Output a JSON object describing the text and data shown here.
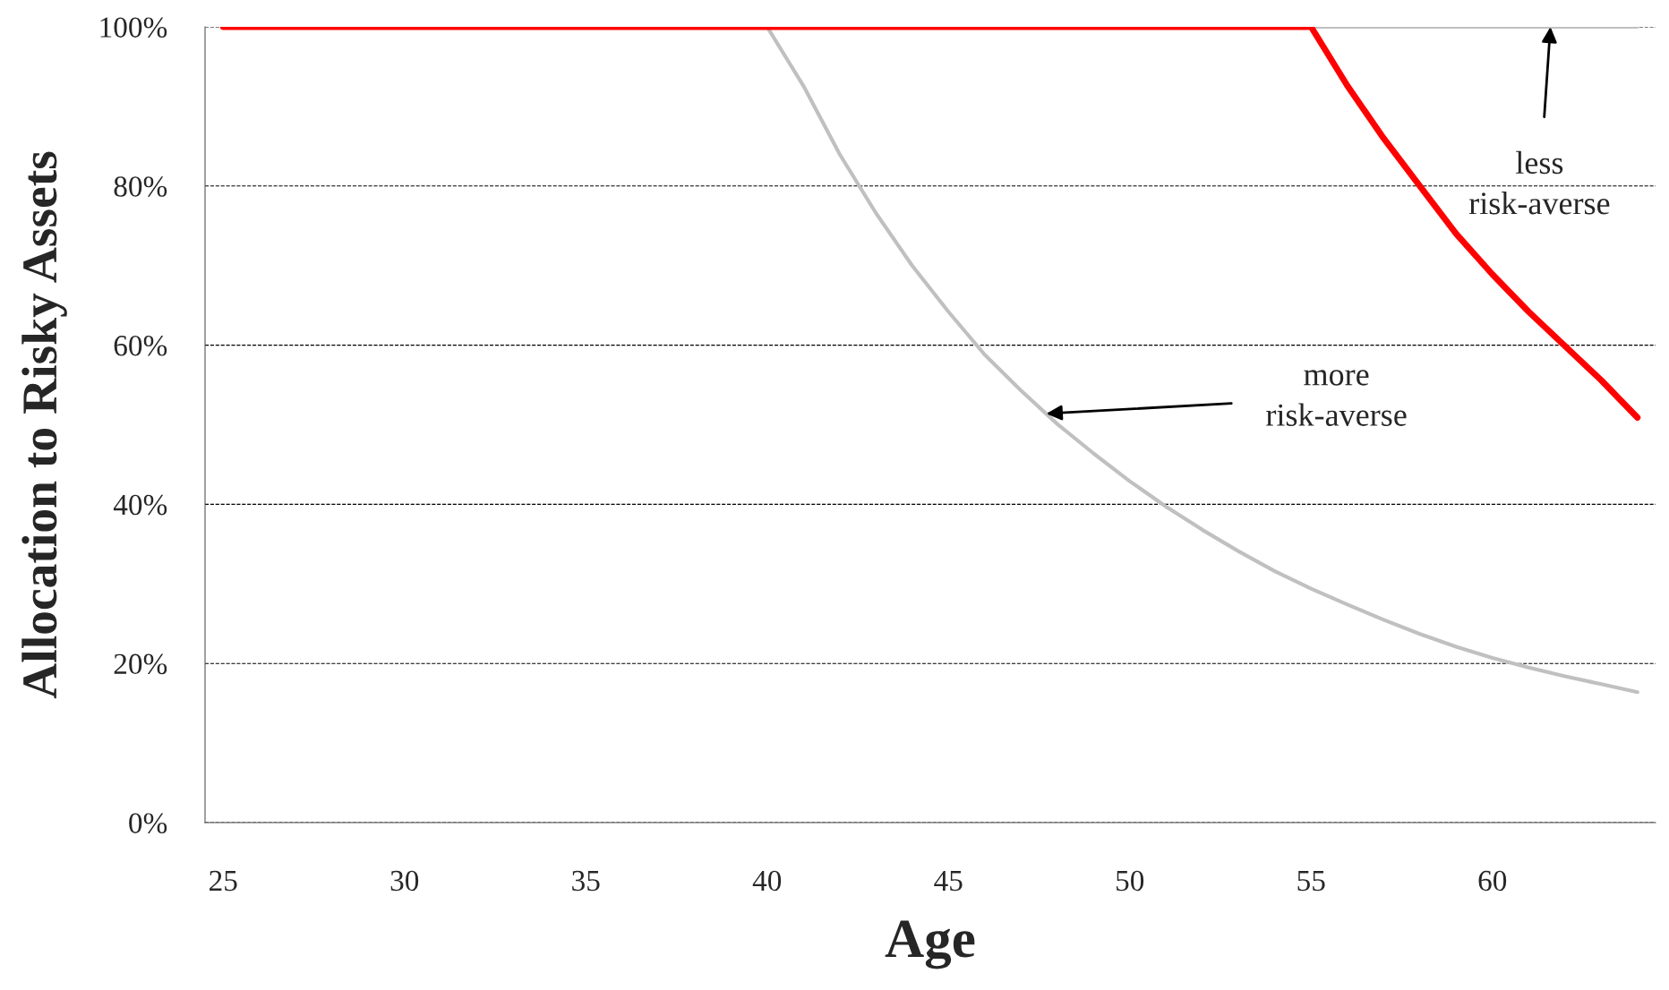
{
  "chart_data": {
    "type": "line",
    "xlabel": "Age",
    "ylabel": "Allocation to Risky Assets",
    "series": [
      {
        "color": "#c0c0c0",
        "x": [
          55,
          64
        ],
        "values": [
          100,
          100
        ]
      },
      {
        "color": "#c0c0c0",
        "x": [
          40,
          41,
          42,
          43,
          44,
          45,
          46,
          47,
          48,
          49,
          50,
          51,
          52,
          53,
          54,
          55,
          56,
          57,
          58,
          59,
          60,
          61,
          62,
          63,
          64
        ],
        "values": [
          100,
          92.6,
          84,
          76.6,
          70,
          64.2,
          58.8,
          54.3,
          50.1,
          46.4,
          42.9,
          39.7,
          36.8,
          34.1,
          31.6,
          29.4,
          27.4,
          25.5,
          23.7,
          22.1,
          20.7,
          19.5,
          18.4,
          17.4,
          16.4
        ]
      },
      {
        "color": "#ff0000",
        "x": [
          25,
          55,
          56,
          57,
          58,
          59,
          60,
          61,
          62,
          63,
          64
        ],
        "values": [
          100,
          100,
          92.6,
          86,
          80,
          74,
          68.9,
          64.2,
          59.9,
          55.6,
          50.9
        ]
      }
    ],
    "xlim": [
      24.5,
      64.5
    ],
    "xticks": [
      25,
      30,
      35,
      40,
      45,
      50,
      55,
      60
    ],
    "ylim": [
      0,
      100
    ],
    "yticks": [
      {
        "value": 0,
        "label": "0%"
      },
      {
        "value": 20,
        "label": "20%"
      },
      {
        "value": 40,
        "label": "40%"
      },
      {
        "value": 60,
        "label": "60%"
      },
      {
        "value": 80,
        "label": "80%"
      },
      {
        "value": 100,
        "label": "100%"
      }
    ],
    "grid": "y",
    "line_style": "solid",
    "marker": "none",
    "annotations": [
      {
        "text": "less\nrisk-averse",
        "x": 61.6,
        "y": 100
      },
      {
        "text": "more\nrisk-averse",
        "x": 47.7,
        "y": 51.4
      }
    ]
  }
}
